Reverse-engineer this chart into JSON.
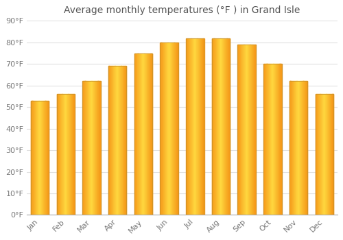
{
  "title": "Average monthly temperatures (°F ) in Grand Isle",
  "months": [
    "Jan",
    "Feb",
    "Mar",
    "Apr",
    "May",
    "Jun",
    "Jul",
    "Aug",
    "Sep",
    "Oct",
    "Nov",
    "Dec"
  ],
  "values": [
    53,
    56,
    62,
    69,
    75,
    80,
    82,
    82,
    79,
    70,
    62,
    56
  ],
  "bar_color_center": "#FFD040",
  "bar_color_edge": "#F5A000",
  "bar_outline_color": "#C8922A",
  "background_color": "#FFFFFF",
  "grid_color": "#E0E0E0",
  "ylim": [
    0,
    90
  ],
  "yticks": [
    0,
    10,
    20,
    30,
    40,
    50,
    60,
    70,
    80,
    90
  ],
  "title_fontsize": 10,
  "tick_fontsize": 8,
  "label_color": "#777777",
  "title_color": "#555555"
}
